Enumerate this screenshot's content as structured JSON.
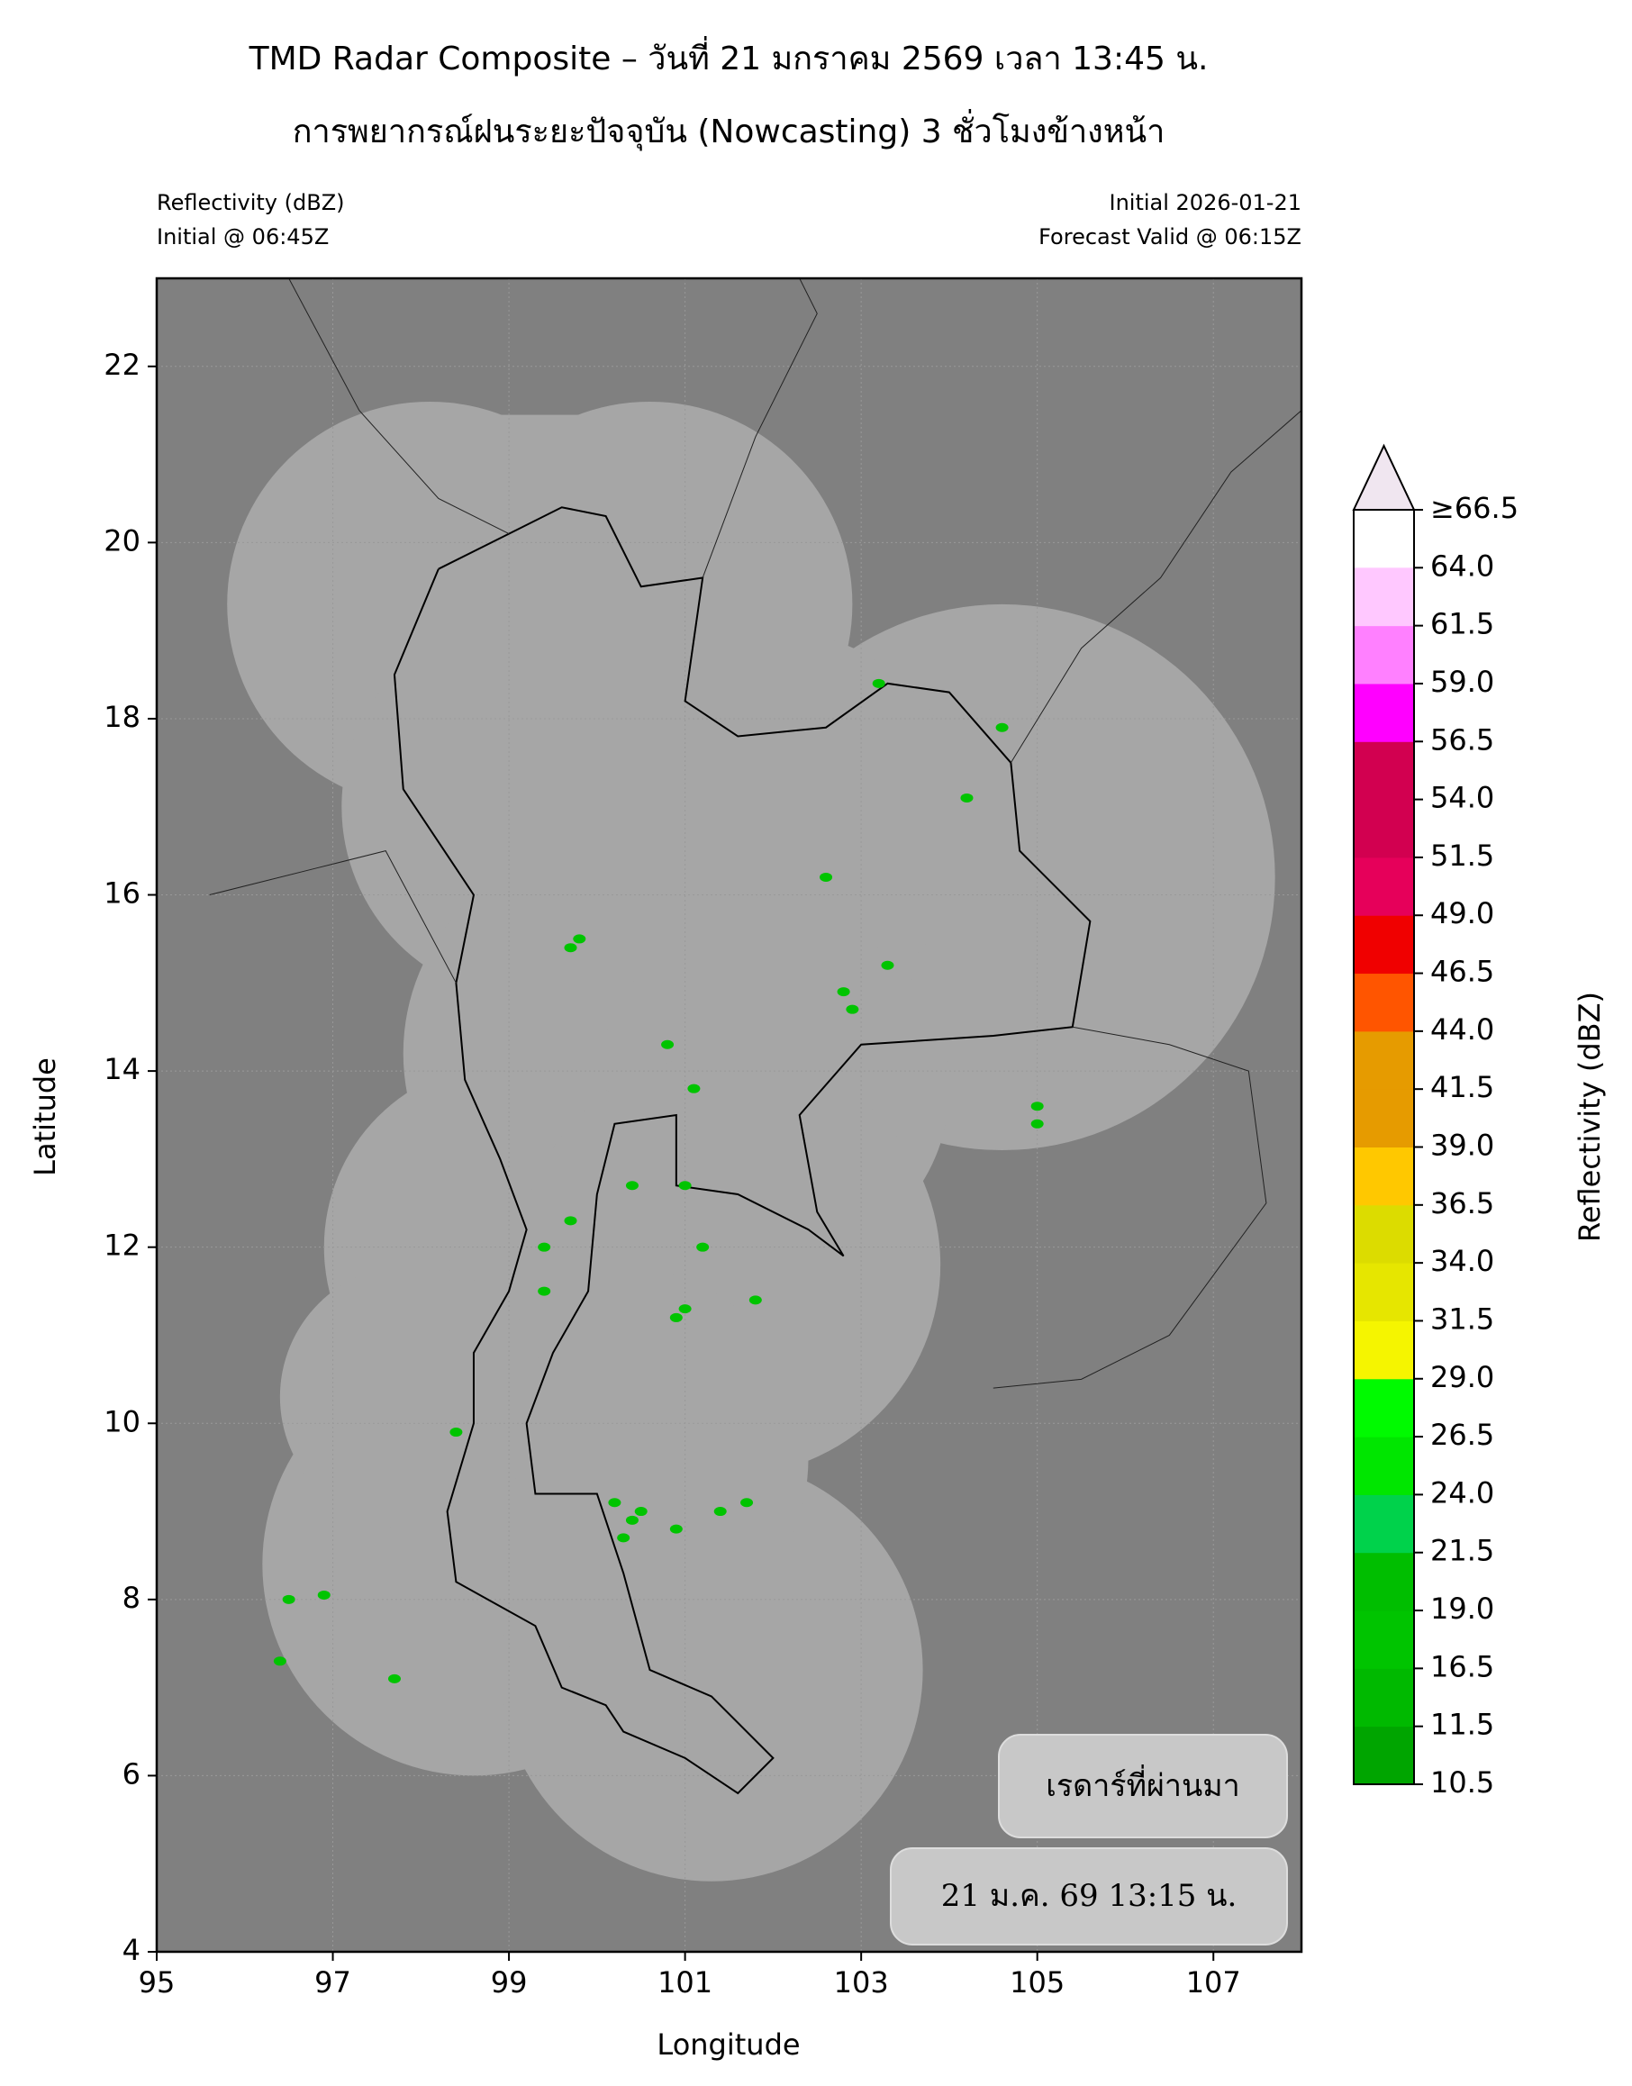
{
  "chart_data": {
    "type": "map",
    "title": "TMD Radar Composite – วันที่ 21 มกราคม 2569 เวลา 13:45 น.",
    "subtitle": "การพยากรณ์ฝนระยะปัจจุบัน (Nowcasting) 3 ชั่วโมงข้างหน้า",
    "left_header": [
      "Reflectivity (dBZ)",
      "Initial @ 06:45Z"
    ],
    "right_header": [
      "Initial 2026-01-21",
      "Forecast Valid @ 06:15Z"
    ],
    "xlabel": "Longitude",
    "ylabel": "Latitude",
    "xlim": [
      95,
      108
    ],
    "ylim": [
      4,
      23
    ],
    "xticks": [
      95,
      97,
      99,
      101,
      103,
      105,
      107
    ],
    "yticks": [
      4,
      6,
      8,
      10,
      12,
      14,
      16,
      18,
      20,
      22
    ],
    "grid": true,
    "colorbar": {
      "label": "Reflectivity (dBZ)",
      "ticks": [
        10.5,
        11.5,
        16.5,
        {
          "value": 19,
          "label": "19.0"
        },
        21.5,
        {
          "value": 24,
          "label": "24.0"
        },
        26.5,
        {
          "value": 29,
          "label": "29.0"
        },
        31.5,
        {
          "value": 34,
          "label": "34.0"
        },
        36.5,
        {
          "value": 39,
          "label": "39.0"
        },
        41.5,
        {
          "value": 44,
          "label": "44.0"
        },
        46.5,
        {
          "value": 49,
          "label": "49.0"
        },
        51.5,
        {
          "value": 54,
          "label": "54.0"
        },
        56.5,
        {
          "value": 59,
          "label": "59.0"
        },
        61.5,
        {
          "value": 64,
          "label": "64.0"
        },
        {
          "value": 66.5,
          "label": "≥66.5"
        }
      ],
      "colors": [
        "#00a500",
        "#00b900",
        "#00c400",
        "#00be00",
        "#00d24b",
        "#00e600",
        "#00fa00",
        "#f5f500",
        "#e6e600",
        "#dcdc00",
        "#ffc800",
        "#e69b00",
        "#e69b00",
        "#ff5500",
        "#f00000",
        "#e6005a",
        "#d20050",
        "#d20050",
        "#ff00ff",
        "#ff80ff",
        "#ffc8ff"
      ],
      "extend_color": "#f0e6f0"
    },
    "annotations": [
      "เรดาร์ที่ผ่านมา",
      "21 ม.ค. 69 13:15 น."
    ]
  }
}
